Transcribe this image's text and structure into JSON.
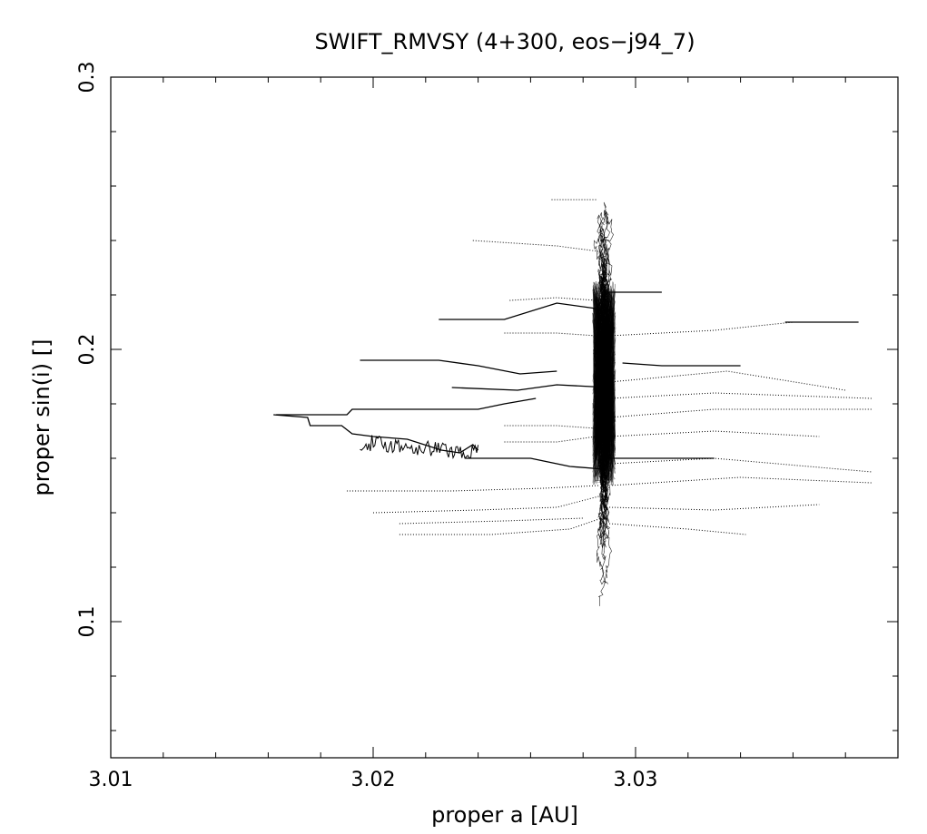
{
  "chart_data": {
    "type": "scatter",
    "title": "SWIFT_RMVSY (4+300, eos−j94_7)",
    "xlabel": "proper a [AU]",
    "ylabel": "proper sin(i) []",
    "xlim": [
      3.01,
      3.04
    ],
    "ylim": [
      0.05,
      0.3
    ],
    "x_ticks": [
      {
        "value": 3.01,
        "label": "3.01"
      },
      {
        "value": 3.02,
        "label": "3.02"
      },
      {
        "value": 3.03,
        "label": "3.03"
      }
    ],
    "y_ticks": [
      {
        "value": 0.1,
        "label": "0.1"
      },
      {
        "value": 0.2,
        "label": "0.2"
      },
      {
        "value": 0.3,
        "label": "0.3"
      }
    ],
    "grid": false,
    "colors": {
      "ink": "#000000",
      "background": "#ffffff"
    },
    "central_column": {
      "x_center": 3.0288,
      "x_spread": 0.0004,
      "y_min": 0.105,
      "y_max": 0.26
    },
    "tracks": [
      {
        "style": "solid",
        "points": [
          [
            3.0162,
            0.176
          ],
          [
            3.0175,
            0.175
          ],
          [
            3.0176,
            0.172
          ],
          [
            3.0188,
            0.172
          ],
          [
            3.0192,
            0.169
          ],
          [
            3.02,
            0.168
          ],
          [
            3.0213,
            0.167
          ],
          [
            3.0226,
            0.163
          ],
          [
            3.0233,
            0.162
          ],
          [
            3.0238,
            0.165
          ],
          [
            3.024,
            0.163
          ]
        ]
      },
      {
        "style": "solid",
        "points": [
          [
            3.0163,
            0.176
          ],
          [
            3.019,
            0.176
          ],
          [
            3.0192,
            0.178
          ],
          [
            3.024,
            0.178
          ],
          [
            3.025,
            0.18
          ],
          [
            3.0262,
            0.182
          ]
        ]
      },
      {
        "style": "solid",
        "points": [
          [
            3.0195,
            0.196
          ],
          [
            3.0225,
            0.196
          ],
          [
            3.024,
            0.194
          ],
          [
            3.0256,
            0.191
          ],
          [
            3.027,
            0.192
          ]
        ]
      },
      {
        "style": "solid",
        "points": [
          [
            3.0225,
            0.211
          ],
          [
            3.025,
            0.211
          ],
          [
            3.027,
            0.217
          ],
          [
            3.0285,
            0.215
          ]
        ]
      },
      {
        "style": "solid",
        "points": [
          [
            3.0235,
            0.16
          ],
          [
            3.026,
            0.16
          ],
          [
            3.0275,
            0.157
          ],
          [
            3.0288,
            0.156
          ]
        ]
      },
      {
        "style": "solid",
        "points": [
          [
            3.023,
            0.186
          ],
          [
            3.0255,
            0.185
          ],
          [
            3.027,
            0.187
          ],
          [
            3.029,
            0.186
          ]
        ]
      },
      {
        "style": "solid",
        "points": [
          [
            3.0295,
            0.195
          ],
          [
            3.031,
            0.194
          ],
          [
            3.034,
            0.194
          ]
        ]
      },
      {
        "style": "solid",
        "points": [
          [
            3.029,
            0.16
          ],
          [
            3.033,
            0.16
          ]
        ]
      },
      {
        "style": "solid",
        "points": [
          [
            3.0357,
            0.21
          ],
          [
            3.0385,
            0.21
          ]
        ]
      },
      {
        "style": "solid",
        "points": [
          [
            3.029,
            0.221
          ],
          [
            3.031,
            0.221
          ]
        ]
      },
      {
        "style": "dotted",
        "points": [
          [
            3.019,
            0.148
          ],
          [
            3.023,
            0.148
          ],
          [
            3.0265,
            0.149
          ],
          [
            3.0286,
            0.15
          ]
        ]
      },
      {
        "style": "dotted",
        "points": [
          [
            3.02,
            0.14
          ],
          [
            3.024,
            0.141
          ],
          [
            3.027,
            0.142
          ],
          [
            3.0286,
            0.146
          ]
        ]
      },
      {
        "style": "dotted",
        "points": [
          [
            3.021,
            0.132
          ],
          [
            3.0245,
            0.132
          ],
          [
            3.0275,
            0.134
          ],
          [
            3.0287,
            0.138
          ]
        ]
      },
      {
        "style": "dotted",
        "points": [
          [
            3.021,
            0.136
          ],
          [
            3.025,
            0.137
          ],
          [
            3.028,
            0.138
          ]
        ]
      },
      {
        "style": "dotted",
        "points": [
          [
            3.029,
            0.142
          ],
          [
            3.033,
            0.141
          ],
          [
            3.037,
            0.143
          ]
        ]
      },
      {
        "style": "dotted",
        "points": [
          [
            3.029,
            0.136
          ],
          [
            3.032,
            0.134
          ],
          [
            3.0342,
            0.132
          ]
        ]
      },
      {
        "style": "dotted",
        "points": [
          [
            3.029,
            0.15
          ],
          [
            3.034,
            0.153
          ],
          [
            3.039,
            0.151
          ]
        ]
      },
      {
        "style": "dotted",
        "points": [
          [
            3.029,
            0.158
          ],
          [
            3.033,
            0.16
          ],
          [
            3.039,
            0.155
          ]
        ]
      },
      {
        "style": "dotted",
        "points": [
          [
            3.029,
            0.168
          ],
          [
            3.033,
            0.17
          ],
          [
            3.037,
            0.168
          ]
        ]
      },
      {
        "style": "dotted",
        "points": [
          [
            3.029,
            0.175
          ],
          [
            3.033,
            0.178
          ],
          [
            3.039,
            0.178
          ]
        ]
      },
      {
        "style": "dotted",
        "points": [
          [
            3.029,
            0.182
          ],
          [
            3.033,
            0.184
          ],
          [
            3.039,
            0.182
          ]
        ]
      },
      {
        "style": "dotted",
        "points": [
          [
            3.029,
            0.188
          ],
          [
            3.0335,
            0.192
          ],
          [
            3.038,
            0.185
          ]
        ]
      },
      {
        "style": "dotted",
        "points": [
          [
            3.029,
            0.205
          ],
          [
            3.033,
            0.207
          ],
          [
            3.036,
            0.21
          ]
        ]
      },
      {
        "style": "dotted",
        "points": [
          [
            3.0238,
            0.24
          ],
          [
            3.027,
            0.238
          ],
          [
            3.0286,
            0.236
          ]
        ]
      },
      {
        "style": "dotted",
        "points": [
          [
            3.0268,
            0.255
          ],
          [
            3.0285,
            0.255
          ]
        ]
      },
      {
        "style": "dotted",
        "points": [
          [
            3.0252,
            0.218
          ],
          [
            3.027,
            0.219
          ],
          [
            3.0285,
            0.218
          ]
        ]
      },
      {
        "style": "dotted",
        "points": [
          [
            3.025,
            0.206
          ],
          [
            3.027,
            0.206
          ],
          [
            3.0285,
            0.205
          ]
        ]
      },
      {
        "style": "dotted",
        "points": [
          [
            3.025,
            0.172
          ],
          [
            3.027,
            0.172
          ],
          [
            3.0285,
            0.171
          ]
        ]
      },
      {
        "style": "dotted",
        "points": [
          [
            3.025,
            0.166
          ],
          [
            3.027,
            0.166
          ],
          [
            3.0285,
            0.168
          ]
        ]
      }
    ]
  }
}
